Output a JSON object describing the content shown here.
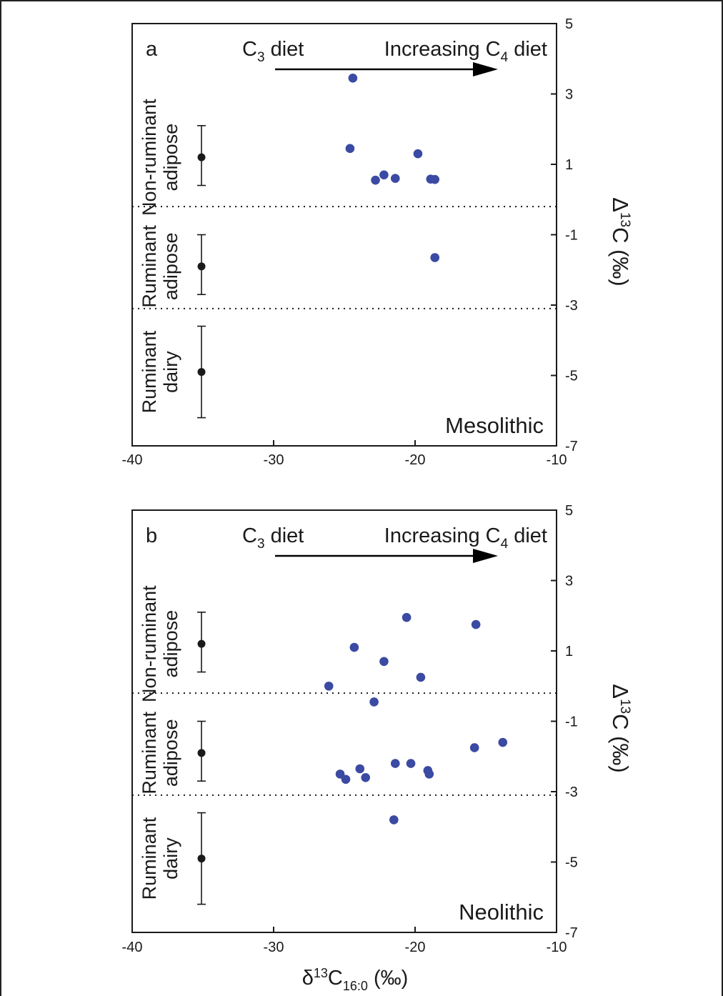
{
  "shared_xlabel": {
    "main": "δ",
    "sup": "13",
    "c": "C",
    "sub": "16:0",
    "rest": " (‰)"
  },
  "colors": {
    "point": "#3b4aa2",
    "period": "#d9141b",
    "axis": "#1a1a1a"
  },
  "chart_data": [
    {
      "type": "scatter",
      "panel_letter": "a",
      "period": "Mesolithic",
      "annotation": {
        "left": "C",
        "left_sub": "3",
        "left_rest": " diet",
        "right": "Increasing C",
        "right_sub": "4",
        "right_rest": " diet"
      },
      "xlim": [
        -40,
        -10
      ],
      "ylim": [
        -7,
        5
      ],
      "xticks": [
        -40,
        -30,
        -20,
        -10
      ],
      "yticks": [
        5,
        3,
        1,
        -1,
        -3,
        -5,
        -7
      ],
      "ylabel": {
        "main": "Δ",
        "sup": "13",
        "rest": "C (‰)"
      },
      "reference_ranges": [
        {
          "label_lines": [
            "Non-ruminant",
            "adipose"
          ],
          "x": -35.1,
          "mean": 1.2,
          "low": 0.4,
          "high": 2.1
        },
        {
          "label_lines": [
            "Ruminant",
            "adipose"
          ],
          "x": -35.1,
          "mean": -1.9,
          "low": -2.7,
          "high": -1.0
        },
        {
          "label_lines": [
            "Ruminant",
            "dairy"
          ],
          "x": -35.1,
          "mean": -4.9,
          "low": -6.2,
          "high": -3.6
        }
      ],
      "dividers": [
        -0.2,
        -3.1
      ],
      "points": [
        {
          "x": -24.4,
          "y": 3.45
        },
        {
          "x": -24.6,
          "y": 1.45
        },
        {
          "x": -19.8,
          "y": 1.3
        },
        {
          "x": -22.2,
          "y": 0.7
        },
        {
          "x": -22.8,
          "y": 0.55
        },
        {
          "x": -21.4,
          "y": 0.6
        },
        {
          "x": -18.9,
          "y": 0.58
        },
        {
          "x": -18.6,
          "y": 0.57
        },
        {
          "x": -18.6,
          "y": -1.65
        }
      ]
    },
    {
      "type": "scatter",
      "panel_letter": "b",
      "period": "Neolithic",
      "annotation": {
        "left": "C",
        "left_sub": "3",
        "left_rest": " diet",
        "right": "Increasing C",
        "right_sub": "4",
        "right_rest": " diet"
      },
      "xlim": [
        -40,
        -10
      ],
      "ylim": [
        -7,
        5
      ],
      "xticks": [
        -40,
        -30,
        -20,
        -10
      ],
      "yticks": [
        5,
        3,
        1,
        -1,
        -3,
        -5,
        -7
      ],
      "ylabel": {
        "main": "Δ",
        "sup": "13",
        "rest": "C (‰)"
      },
      "reference_ranges": [
        {
          "label_lines": [
            "Non-ruminant",
            "adipose"
          ],
          "x": -35.1,
          "mean": 1.2,
          "low": 0.4,
          "high": 2.1
        },
        {
          "label_lines": [
            "Ruminant",
            "adipose"
          ],
          "x": -35.1,
          "mean": -1.9,
          "low": -2.7,
          "high": -1.0
        },
        {
          "label_lines": [
            "Ruminant",
            "dairy"
          ],
          "x": -35.1,
          "mean": -4.9,
          "low": -6.2,
          "high": -3.6
        }
      ],
      "dividers": [
        -0.2,
        -3.1
      ],
      "points": [
        {
          "x": -20.6,
          "y": 1.95
        },
        {
          "x": -15.7,
          "y": 1.75
        },
        {
          "x": -24.3,
          "y": 1.1
        },
        {
          "x": -22.2,
          "y": 0.7
        },
        {
          "x": -19.6,
          "y": 0.25
        },
        {
          "x": -26.1,
          "y": 0.0
        },
        {
          "x": -22.9,
          "y": -0.45
        },
        {
          "x": -15.8,
          "y": -1.75
        },
        {
          "x": -13.8,
          "y": -1.6
        },
        {
          "x": -21.4,
          "y": -2.2
        },
        {
          "x": -20.3,
          "y": -2.2
        },
        {
          "x": -23.9,
          "y": -2.35
        },
        {
          "x": -19.1,
          "y": -2.4
        },
        {
          "x": -25.3,
          "y": -2.5
        },
        {
          "x": -19.0,
          "y": -2.5
        },
        {
          "x": -24.9,
          "y": -2.65
        },
        {
          "x": -23.5,
          "y": -2.6
        },
        {
          "x": -21.5,
          "y": -3.8
        }
      ]
    }
  ]
}
